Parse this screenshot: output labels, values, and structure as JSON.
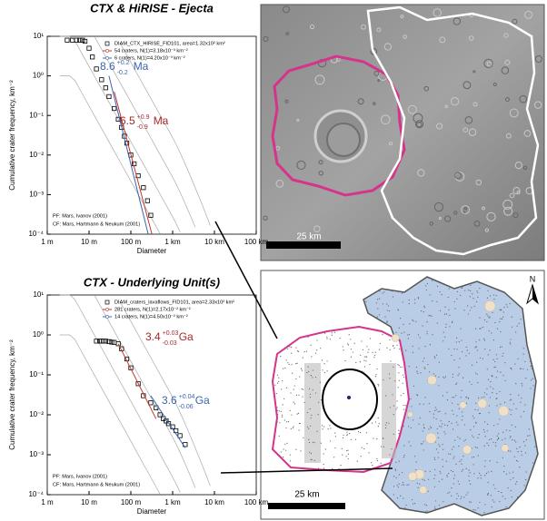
{
  "chart_data": [
    {
      "type": "scatter",
      "title": "CTX & HiRISE - Ejecta",
      "x_label": "Diameter",
      "y_label": "Cumulative crater frequency, km⁻²",
      "xscale": "log",
      "yscale": "log",
      "xlim": [
        1,
        100000
      ],
      "xticks": [
        {
          "value": 1,
          "label": "1 m"
        },
        {
          "value": 10,
          "label": "10 m"
        },
        {
          "value": 100,
          "label": "100 m"
        },
        {
          "value": 1000,
          "label": "1 km"
        },
        {
          "value": 10000,
          "label": "10 km"
        },
        {
          "value": 100000,
          "label": "100 km"
        }
      ],
      "ylim": [
        0.0001,
        10
      ],
      "yticks": [
        {
          "value": 0.0001,
          "label": "10⁻⁴"
        },
        {
          "value": 0.001,
          "label": "10⁻³"
        },
        {
          "value": 0.01,
          "label": "10⁻²"
        },
        {
          "value": 0.1,
          "label": "10⁻¹"
        },
        {
          "value": 1,
          "label": "10⁰"
        },
        {
          "value": 10,
          "label": "10¹"
        }
      ],
      "series": [
        {
          "name": "DIAM_CTX_HIRISE_FID101, area=1.32x10² km²",
          "color": "#000000",
          "marker": "square",
          "x": [
            3,
            4,
            5,
            6,
            7,
            8,
            10,
            12,
            15,
            20,
            25,
            30,
            40,
            50,
            60,
            70,
            80,
            100,
            120,
            150,
            200,
            250,
            300
          ],
          "values": [
            8,
            8,
            8,
            8,
            8,
            7.5,
            5,
            3,
            1.5,
            0.8,
            0.5,
            0.3,
            0.15,
            0.08,
            0.05,
            0.03,
            0.02,
            0.01,
            0.006,
            0.003,
            0.0015,
            0.0007,
            0.0003
          ]
        },
        {
          "name": "54 craters, N(1)=3.18x10⁻³ km⁻²",
          "color": "#c0392b",
          "marker": "line",
          "x": [
            40,
            320
          ],
          "values": [
            0.4,
            0.0001
          ]
        },
        {
          "name": "6 craters, N(1)=4.20x10⁻³ km⁻²",
          "color": "#3a64b0",
          "marker": "line",
          "x": [
            30,
            260
          ],
          "values": [
            1,
            0.0001
          ]
        }
      ],
      "annotations": [
        {
          "text": "8.6",
          "upper": "+0.2",
          "lower": "-0.2",
          "unit": "Ma",
          "color": "#3a64b0"
        },
        {
          "text": "6.5",
          "upper": "+0.9",
          "lower": "-0.9",
          "unit": "Ma",
          "color": "#a52a2a"
        }
      ],
      "notes": [
        "PF: Mars, Ivanov (2001)",
        "CF: Mars, Hartmann & Neukum (2001)"
      ]
    },
    {
      "type": "scatter",
      "title": "CTX - Underlying Unit(s)",
      "x_label": "Diameter",
      "y_label": "Cumulative crater frequency, km⁻²",
      "xscale": "log",
      "yscale": "log",
      "xlim": [
        1,
        100000
      ],
      "xticks": [
        {
          "value": 1,
          "label": "1 m"
        },
        {
          "value": 10,
          "label": "10 m"
        },
        {
          "value": 100,
          "label": "100 m"
        },
        {
          "value": 1000,
          "label": "1 km"
        },
        {
          "value": 10000,
          "label": "10 km"
        },
        {
          "value": 100000,
          "label": "100 km"
        }
      ],
      "ylim": [
        0.0001,
        10
      ],
      "yticks": [
        {
          "value": 0.0001,
          "label": "10⁻⁴"
        },
        {
          "value": 0.001,
          "label": "10⁻³"
        },
        {
          "value": 0.01,
          "label": "10⁻²"
        },
        {
          "value": 0.1,
          "label": "10⁻¹"
        },
        {
          "value": 1,
          "label": "10⁰"
        },
        {
          "value": 10,
          "label": "10¹"
        }
      ],
      "series": [
        {
          "name": "DIAM_craters_lavaflows_FID101, area=2.33x10² km²",
          "color": "#000000",
          "marker": "square",
          "x": [
            15,
            18,
            20,
            22,
            25,
            30,
            35,
            40,
            50,
            60,
            80,
            100,
            150,
            200,
            300,
            400,
            500,
            600,
            700,
            800,
            1000,
            1200,
            1500,
            2000
          ],
          "values": [
            0.7,
            0.7,
            0.7,
            0.7,
            0.7,
            0.68,
            0.66,
            0.65,
            0.6,
            0.45,
            0.25,
            0.15,
            0.06,
            0.03,
            0.02,
            0.015,
            0.01,
            0.008,
            0.007,
            0.006,
            0.005,
            0.004,
            0.003,
            0.0018
          ]
        },
        {
          "name": "281 craters, N(1)=2.17x10⁻² km⁻²",
          "color": "#c0392b",
          "marker": "line",
          "x": [
            50,
            400
          ],
          "values": [
            0.6,
            0.008
          ]
        },
        {
          "name": "14 craters, N(1)=4.50x10⁻² km⁻²",
          "color": "#3a64b0",
          "marker": "line",
          "x": [
            300,
            2000
          ],
          "values": [
            0.03,
            0.0015
          ]
        }
      ],
      "annotations": [
        {
          "text": "3.4",
          "upper": "+0.03",
          "lower": "-0.03",
          "unit": "Ga",
          "color": "#a52a2a"
        },
        {
          "text": "3.6",
          "upper": "+0.04",
          "lower": "-0.06",
          "unit": "Ga",
          "color": "#3a64b0"
        }
      ],
      "notes": [
        "PF: Mars, Ivanov (2001)",
        "CF: Mars, Hartmann & Neukum (2001)"
      ]
    }
  ],
  "maps": [
    {
      "scale_label": "25 km"
    },
    {
      "scale_label": "25 km",
      "north": "N"
    }
  ]
}
